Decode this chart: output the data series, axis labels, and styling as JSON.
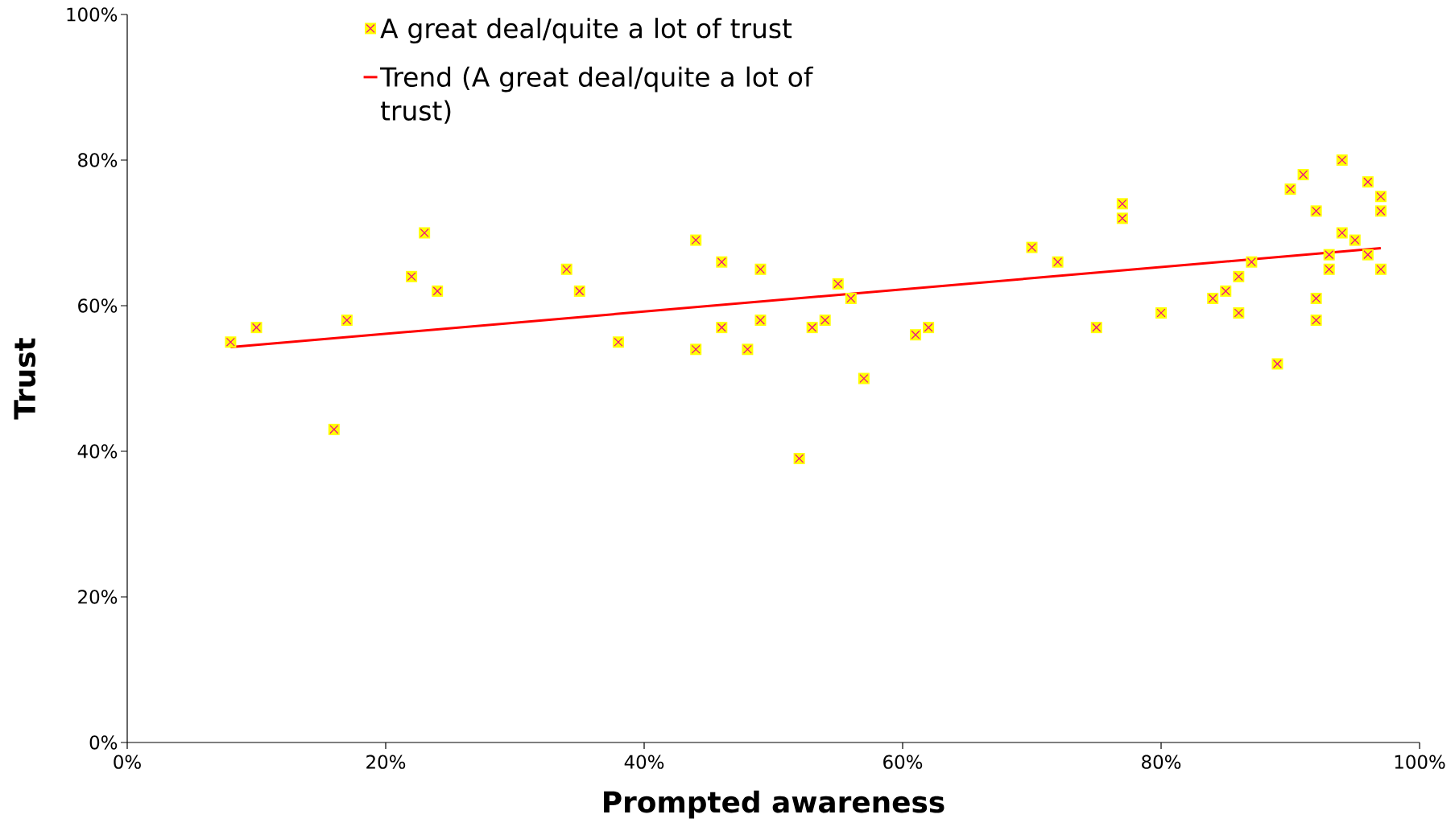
{
  "chart_data": {
    "type": "scatter",
    "xlabel": "Prompted awareness",
    "ylabel": "Trust",
    "xlim": [
      0,
      100
    ],
    "ylim": [
      0,
      100
    ],
    "xticks": [
      {
        "value": 0,
        "label": "0%"
      },
      {
        "value": 20,
        "label": "20%"
      },
      {
        "value": 40,
        "label": "40%"
      },
      {
        "value": 60,
        "label": "60%"
      },
      {
        "value": 80,
        "label": "80%"
      },
      {
        "value": 100,
        "label": "100%"
      }
    ],
    "yticks": [
      {
        "value": 0,
        "label": "0%"
      },
      {
        "value": 20,
        "label": "20%"
      },
      {
        "value": 40,
        "label": "40%"
      },
      {
        "value": 60,
        "label": "60%"
      },
      {
        "value": 80,
        "label": "80%"
      },
      {
        "value": 100,
        "label": "100%"
      }
    ],
    "legend": "top",
    "grid": false,
    "series": [
      {
        "name": "A great deal/quite a lot of trust",
        "marker": "square",
        "color": "#ffff00",
        "x": [
          8,
          10,
          16,
          17,
          22,
          23,
          24,
          34,
          35,
          38,
          44,
          44,
          46,
          46,
          48,
          49,
          49,
          52,
          53,
          54,
          55,
          56,
          57,
          61,
          62,
          70,
          72,
          75,
          77,
          77,
          80,
          84,
          85,
          86,
          86,
          87,
          89,
          90,
          91,
          92,
          92,
          92,
          93,
          93,
          94,
          94,
          95,
          96,
          96,
          97,
          97,
          97
        ],
        "values": [
          55,
          57,
          43,
          58,
          64,
          70,
          62,
          65,
          62,
          55,
          69,
          54,
          66,
          57,
          54,
          65,
          58,
          39,
          57,
          58,
          63,
          61,
          50,
          56,
          57,
          68,
          66,
          57,
          74,
          72,
          59,
          61,
          62,
          64,
          59,
          66,
          52,
          76,
          78,
          73,
          61,
          58,
          67,
          65,
          80,
          70,
          69,
          77,
          67,
          75,
          73,
          65
        ]
      },
      {
        "name": "Trend (A great deal/quite a lot of trust)",
        "type": "line",
        "marker": "none",
        "color": "#ff0000",
        "x": [
          8,
          97
        ],
        "values": [
          54.3,
          67.9
        ]
      }
    ]
  }
}
